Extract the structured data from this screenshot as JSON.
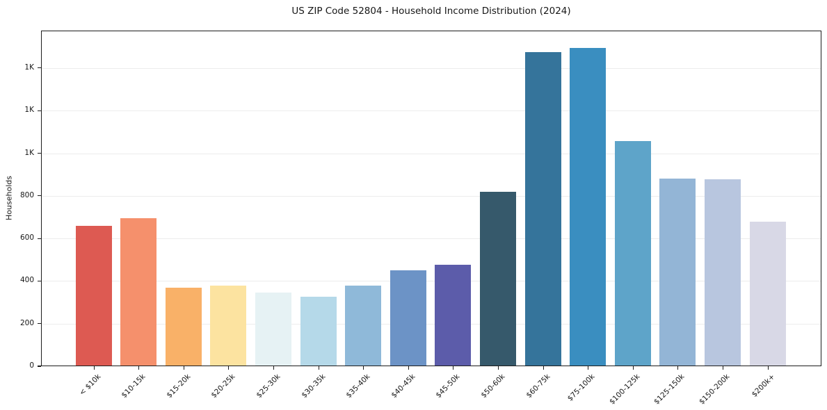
{
  "chart_data": {
    "type": "bar",
    "title": "US ZIP Code 52804 - Household Income Distribution (2024)",
    "xlabel": "",
    "ylabel": "Households",
    "categories": [
      "< $10k",
      "$10-15k",
      "$15-20k",
      "$20-25k",
      "$25-30k",
      "$30-35k",
      "$35-40k",
      "$40-45k",
      "$45-50k",
      "$50-60k",
      "$60-75k",
      "$75-100k",
      "$100-125k",
      "$125-150k",
      "$150-200k",
      "$200k+"
    ],
    "values": [
      660,
      695,
      370,
      378,
      345,
      325,
      378,
      452,
      478,
      820,
      1475,
      1495,
      1058,
      880,
      878,
      680
    ],
    "bar_colors": [
      "#dd5a52",
      "#f5906c",
      "#f9b168",
      "#fce3a0",
      "#e6f2f4",
      "#b5d9e9",
      "#8fb9d9",
      "#6c93c6",
      "#5c5caa",
      "#36596b",
      "#35749b",
      "#3a8ec0",
      "#5ea4c9",
      "#93b5d6",
      "#b8c6df",
      "#d8d8e6"
    ],
    "yticks": {
      "values": [
        0,
        200,
        400,
        600,
        800,
        1000,
        1200,
        1400
      ],
      "labels": [
        "0",
        "200",
        "400",
        "600",
        "800",
        "1K",
        "1K",
        "1K"
      ]
    },
    "ylim": [
      0,
      1576
    ],
    "grid": "horizontal",
    "legend": "none",
    "styling": {
      "background": "#ffffff",
      "grid_color": "#ececec",
      "spine_color": "#1c1c1c",
      "text_color": "#161616"
    }
  }
}
